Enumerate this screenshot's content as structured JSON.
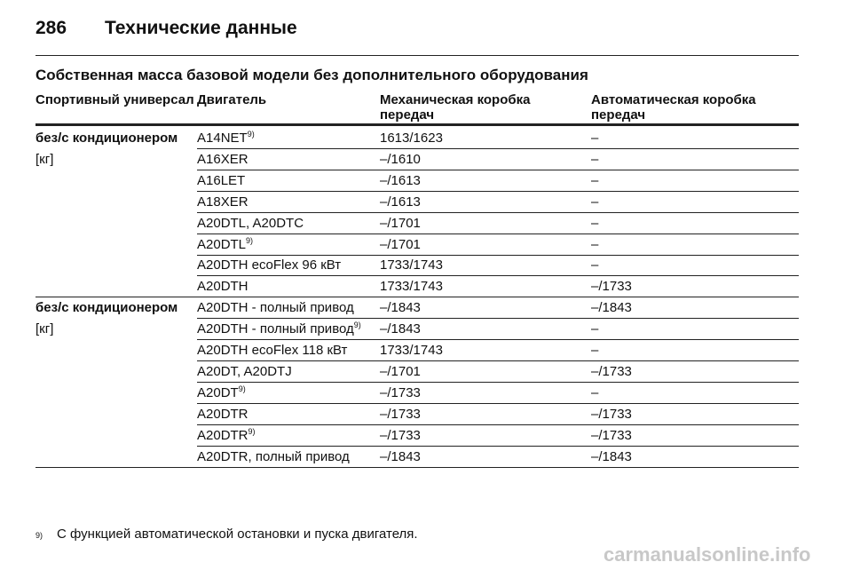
{
  "header": {
    "page_number": "286",
    "title": "Технические данные"
  },
  "section_title": "Собственная масса базовой модели без дополнительного оборудования",
  "table": {
    "columns": [
      "Спортивный универсал",
      "Двигатель",
      "Механическая коробка передач",
      "Автоматическая коробка передач"
    ],
    "groups": [
      {
        "label": "без/с кондиционером",
        "unit": "[кг]",
        "rows": [
          {
            "engine": "A14NET",
            "note": "9)",
            "manual": "1613/1623",
            "auto": "–"
          },
          {
            "engine": "A16XER",
            "manual": "–/1610",
            "auto": "–"
          },
          {
            "engine": "A16LET",
            "manual": "–/1613",
            "auto": "–"
          },
          {
            "engine": "A18XER",
            "manual": "–/1613",
            "auto": "–"
          },
          {
            "engine": "A20DTL, A20DTC",
            "manual": "–/1701",
            "auto": "–"
          },
          {
            "engine": "A20DTL",
            "note": "9)",
            "manual": "–/1701",
            "auto": "–"
          },
          {
            "engine": "A20DTH ecoFlex 96 кВт",
            "manual": "1733/1743",
            "auto": "–"
          },
          {
            "engine": "A20DTH",
            "manual": "1733/1743",
            "auto": "–/1733"
          }
        ]
      },
      {
        "label": "без/с кондиционером",
        "unit": "[кг]",
        "rows": [
          {
            "engine": "A20DTH - полный привод",
            "manual": "–/1843",
            "auto": "–/1843"
          },
          {
            "engine": "A20DTH - полный привод",
            "note": "9)",
            "manual": "–/1843",
            "auto": "–"
          },
          {
            "engine": "A20DTH ecoFlex 118 кВт",
            "manual": "1733/1743",
            "auto": "–"
          },
          {
            "engine": "A20DT, A20DTJ",
            "manual": "–/1701",
            "auto": "–/1733"
          },
          {
            "engine": "A20DT",
            "note": "9)",
            "manual": "–/1733",
            "auto": "–"
          },
          {
            "engine": "A20DTR",
            "manual": "–/1733",
            "auto": "–/1733"
          },
          {
            "engine": "A20DTR",
            "note": "9)",
            "manual": "–/1733",
            "auto": "–/1733"
          },
          {
            "engine": "A20DTR, полный привод",
            "manual": "–/1843",
            "auto": "–/1843"
          }
        ]
      }
    ]
  },
  "footnote": {
    "marker": "9)",
    "text": "С функцией автоматической остановки и пуска двигателя."
  },
  "watermark": "carmanualsonline.info"
}
